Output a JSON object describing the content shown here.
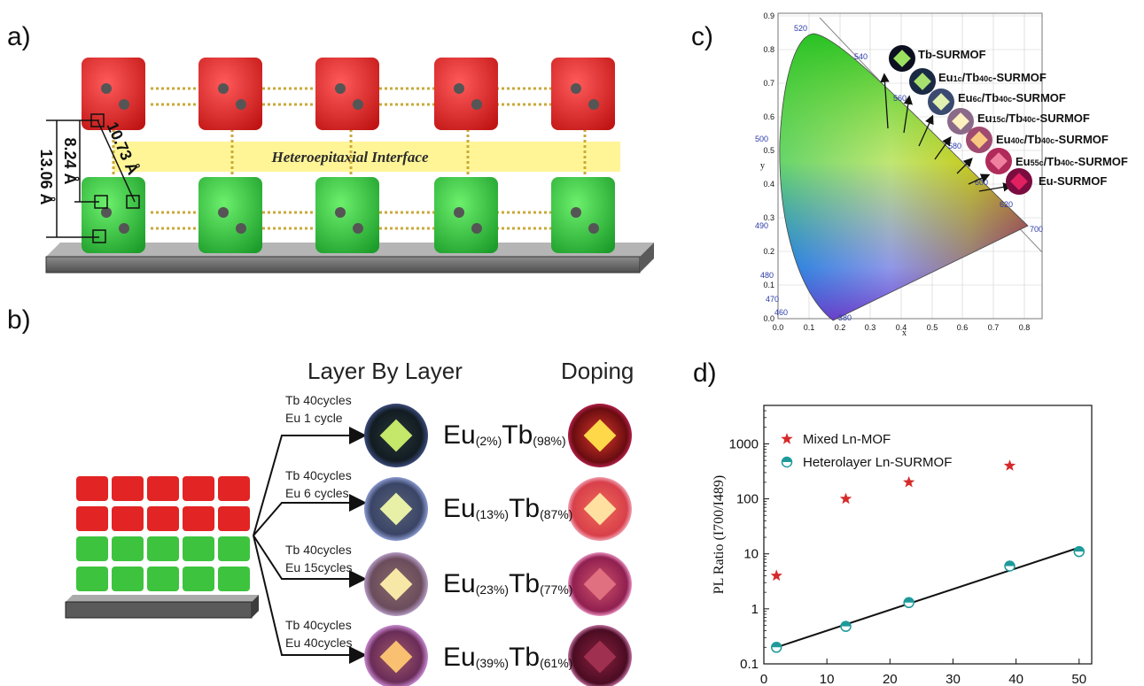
{
  "panels": {
    "a": "a)",
    "b": "b)",
    "c": "c)",
    "d": "d)"
  },
  "panel_a": {
    "interface_label": "Heteroepitaxial Interface",
    "dim_outer": "13.06 Å",
    "dim_inner": "8.24 Å",
    "dim_diag": "10.73 Å"
  },
  "panel_b": {
    "header_lbl": "Layer By Layer",
    "header_dop": "Doping",
    "rows": [
      {
        "line1": "Tb 40cycles",
        "line2": "Eu 1 cycle",
        "eu": "Eu",
        "eu_pct": "(2%)",
        "tb": "Tb",
        "tb_pct": "(98%)"
      },
      {
        "line1": "Tb 40cycles",
        "line2": "Eu 6 cycles",
        "eu": "Eu",
        "eu_pct": "(13%)",
        "tb": "Tb",
        "tb_pct": "(87%)"
      },
      {
        "line1": "Tb 40cycles",
        "line2": "Eu 15cycles",
        "eu": "Eu",
        "eu_pct": "(23%)",
        "tb": "Tb",
        "tb_pct": "(77%)"
      },
      {
        "line1": "Tb 40cycles",
        "line2": "Eu 40cycles",
        "eu": "Eu",
        "eu_pct": "(39%)",
        "tb": "Tb",
        "tb_pct": "(61%)"
      }
    ]
  },
  "panel_c": {
    "xlabel": "x",
    "ylabel": "y",
    "xticks": [
      "0.0",
      "0.1",
      "0.2",
      "0.3",
      "0.4",
      "0.5",
      "0.6",
      "0.7",
      "0.8"
    ],
    "yticks": [
      "0.0",
      "0.1",
      "0.2",
      "0.3",
      "0.4",
      "0.5",
      "0.6",
      "0.7",
      "0.8",
      "0.9"
    ],
    "wavelengths": [
      "520",
      "540",
      "560",
      "580",
      "600",
      "620",
      "700",
      "500",
      "490",
      "480",
      "470",
      "460",
      "380"
    ],
    "samples": [
      {
        "pre": "Tb-SURMOF",
        "sub1": "",
        "mid": "",
        "sub2": "",
        "post": ""
      },
      {
        "pre": "Eu",
        "sub1": "1c",
        "mid": "/Tb",
        "sub2": "40c",
        "post": "-SURMOF"
      },
      {
        "pre": "Eu",
        "sub1": "6c",
        "mid": "/Tb",
        "sub2": "40c",
        "post": "-SURMOF"
      },
      {
        "pre": "Eu",
        "sub1": "15c",
        "mid": "/Tb",
        "sub2": "40c",
        "post": "-SURMOF"
      },
      {
        "pre": "Eu",
        "sub1": "40c",
        "mid": "/Tb",
        "sub2": "40c",
        "post": "-SURMOF"
      },
      {
        "pre": "Eu",
        "sub1": "55c",
        "mid": "/Tb",
        "sub2": "40c",
        "post": "-SURMOF"
      },
      {
        "pre": "Eu-SURMOF",
        "sub1": "",
        "mid": "",
        "sub2": "",
        "post": ""
      }
    ]
  },
  "chart_data": {
    "type": "scatter",
    "scale_y": "log",
    "ylabel": "PL Ratio (I700/I489)",
    "xlim": [
      0,
      52
    ],
    "ylim": [
      0.1,
      5000
    ],
    "xticks": [
      "0",
      "10",
      "20",
      "30",
      "40",
      "50"
    ],
    "yticks": [
      "0.1",
      "1",
      "10",
      "100",
      "1000"
    ],
    "legend_position": "top-left",
    "series": [
      {
        "name": "Mixed Ln-MOF",
        "marker": "star",
        "color": "#d62a2a",
        "x": [
          2,
          13,
          23,
          39
        ],
        "y": [
          4,
          100,
          200,
          400
        ]
      },
      {
        "name": "Heterolayer Ln-SURMOF",
        "marker": "half-circle",
        "color": "#1e9a9a",
        "x": [
          2,
          13,
          23,
          39,
          50
        ],
        "y": [
          0.2,
          0.48,
          1.3,
          6,
          11
        ]
      }
    ],
    "fit_line": {
      "x": [
        2,
        50
      ],
      "y": [
        0.2,
        13
      ]
    }
  }
}
